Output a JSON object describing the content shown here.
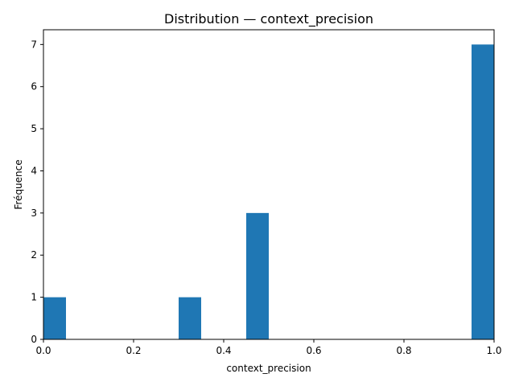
{
  "chart_data": {
    "type": "bar",
    "title": "Distribution — context_precision",
    "xlabel": "context_precision",
    "ylabel": "Fréquence",
    "xlim": [
      0.0,
      1.0
    ],
    "ylim": [
      0,
      7.35
    ],
    "bin_width": 0.05,
    "bins": [
      {
        "x0": 0.0,
        "x1": 0.05,
        "value": 1
      },
      {
        "x0": 0.3,
        "x1": 0.35,
        "value": 1
      },
      {
        "x0": 0.45,
        "x1": 0.5,
        "value": 3
      },
      {
        "x0": 0.95,
        "x1": 1.0,
        "value": 7
      }
    ],
    "x_ticks": [
      {
        "value": 0.0,
        "label": "0.0"
      },
      {
        "value": 0.2,
        "label": "0.2"
      },
      {
        "value": 0.4,
        "label": "0.4"
      },
      {
        "value": 0.6,
        "label": "0.6"
      },
      {
        "value": 0.8,
        "label": "0.8"
      },
      {
        "value": 1.0,
        "label": "1.0"
      }
    ],
    "y_ticks": [
      {
        "value": 0,
        "label": "0"
      },
      {
        "value": 1,
        "label": "1"
      },
      {
        "value": 2,
        "label": "2"
      },
      {
        "value": 3,
        "label": "3"
      },
      {
        "value": 4,
        "label": "4"
      },
      {
        "value": 5,
        "label": "5"
      },
      {
        "value": 6,
        "label": "6"
      },
      {
        "value": 7,
        "label": "7"
      }
    ],
    "bar_color": "#1f77b4",
    "grid": false,
    "legend": "none"
  }
}
